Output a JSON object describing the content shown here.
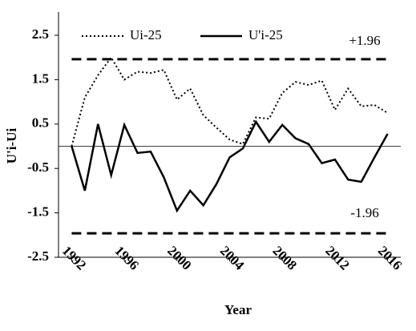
{
  "chart_data": {
    "type": "line",
    "x_label": "Year",
    "y_label": "U'i-Ui",
    "x": [
      1992,
      1993,
      1994,
      1995,
      1996,
      1997,
      1998,
      1999,
      2000,
      2001,
      2002,
      2003,
      2004,
      2005,
      2006,
      2007,
      2008,
      2009,
      2010,
      2011,
      2012,
      2013,
      2014,
      2015,
      2016
    ],
    "series": [
      {
        "name": "Ui-25",
        "color": "#000000",
        "dash": "dotted",
        "values": [
          0.0,
          1.1,
          1.6,
          2.0,
          1.5,
          1.68,
          1.65,
          1.72,
          1.05,
          1.3,
          0.7,
          0.42,
          0.15,
          0.05,
          0.65,
          0.62,
          1.2,
          1.45,
          1.38,
          1.48,
          0.82,
          1.3,
          0.9,
          0.93,
          0.75
        ]
      },
      {
        "name": "U'i-25",
        "color": "#000000",
        "dash": "solid",
        "values": [
          0.0,
          -1.0,
          0.5,
          -0.65,
          0.48,
          -0.15,
          -0.12,
          -0.7,
          -1.45,
          -1.0,
          -1.33,
          -0.85,
          -0.25,
          -0.05,
          0.55,
          0.1,
          0.48,
          0.18,
          0.05,
          -0.38,
          -0.3,
          -0.75,
          -0.8,
          -0.25,
          0.28
        ]
      }
    ],
    "hlines": [
      {
        "value": 1.96,
        "label": "+1.96"
      },
      {
        "value": -1.96,
        "label": "-1.96"
      }
    ],
    "zero_line": true,
    "xlim": [
      1991,
      2017
    ],
    "xticks": [
      1992,
      1996,
      2000,
      2004,
      2008,
      2012,
      2016
    ],
    "ylim": [
      -2.5,
      2.5
    ],
    "yticks": [
      -2.5,
      -1.5,
      -0.5,
      0.5,
      1.5,
      2.5
    ],
    "legend": "top"
  }
}
